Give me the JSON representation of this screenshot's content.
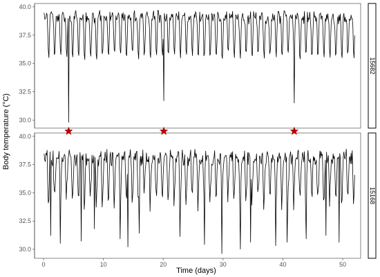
{
  "chart_data": {
    "type": "line",
    "xlabel": "Time (days)",
    "ylabel": "Body temperature (°C)",
    "xlim": [
      -1.5,
      53
    ],
    "x_ticks": [
      0,
      10,
      20,
      30,
      40,
      50
    ],
    "y_ticks": [
      30.0,
      32.5,
      35.0,
      37.5,
      40.0
    ],
    "y_tick_labels": [
      "30.0",
      "32.5",
      "35.0",
      "37.5",
      "40.0"
    ],
    "grid": false,
    "line_color": "#000000",
    "marker_color": "#b30000",
    "star_markers_x_days": [
      4.2,
      20.1,
      41.9
    ],
    "panels": [
      {
        "id": "15682",
        "ylim": [
          29.3,
          40.3
        ],
        "x_range": [
          0.1,
          52.0
        ],
        "samples_per_day": 10,
        "daily_high": 39.3,
        "daily_low": 35.0,
        "dips": [
          {
            "x": 4.2,
            "y": 29.8
          },
          {
            "x": 20.1,
            "y": 31.7
          },
          {
            "x": 41.9,
            "y": 31.5
          }
        ]
      },
      {
        "id": "15168",
        "ylim": [
          29.2,
          40.3
        ],
        "x_range": [
          0.1,
          52.0
        ],
        "samples_per_day": 10,
        "daily_high": 38.4,
        "daily_low_range": [
          30.0,
          35.0
        ],
        "dips": [
          {
            "x": 1.2,
            "y": 31.2
          },
          {
            "x": 2.8,
            "y": 30.5
          },
          {
            "x": 6.3,
            "y": 30.7
          },
          {
            "x": 8.5,
            "y": 31.8
          },
          {
            "x": 12.8,
            "y": 30.9
          },
          {
            "x": 14.1,
            "y": 30.2
          },
          {
            "x": 16.0,
            "y": 31.4
          },
          {
            "x": 22.8,
            "y": 31.1
          },
          {
            "x": 26.9,
            "y": 30.4
          },
          {
            "x": 29.8,
            "y": 29.6
          },
          {
            "x": 32.9,
            "y": 30.0
          },
          {
            "x": 34.6,
            "y": 30.6
          },
          {
            "x": 38.8,
            "y": 30.3
          },
          {
            "x": 40.7,
            "y": 30.6
          },
          {
            "x": 43.9,
            "y": 30.9
          },
          {
            "x": 47.2,
            "y": 31.2
          },
          {
            "x": 49.4,
            "y": 30.6
          }
        ]
      }
    ]
  }
}
